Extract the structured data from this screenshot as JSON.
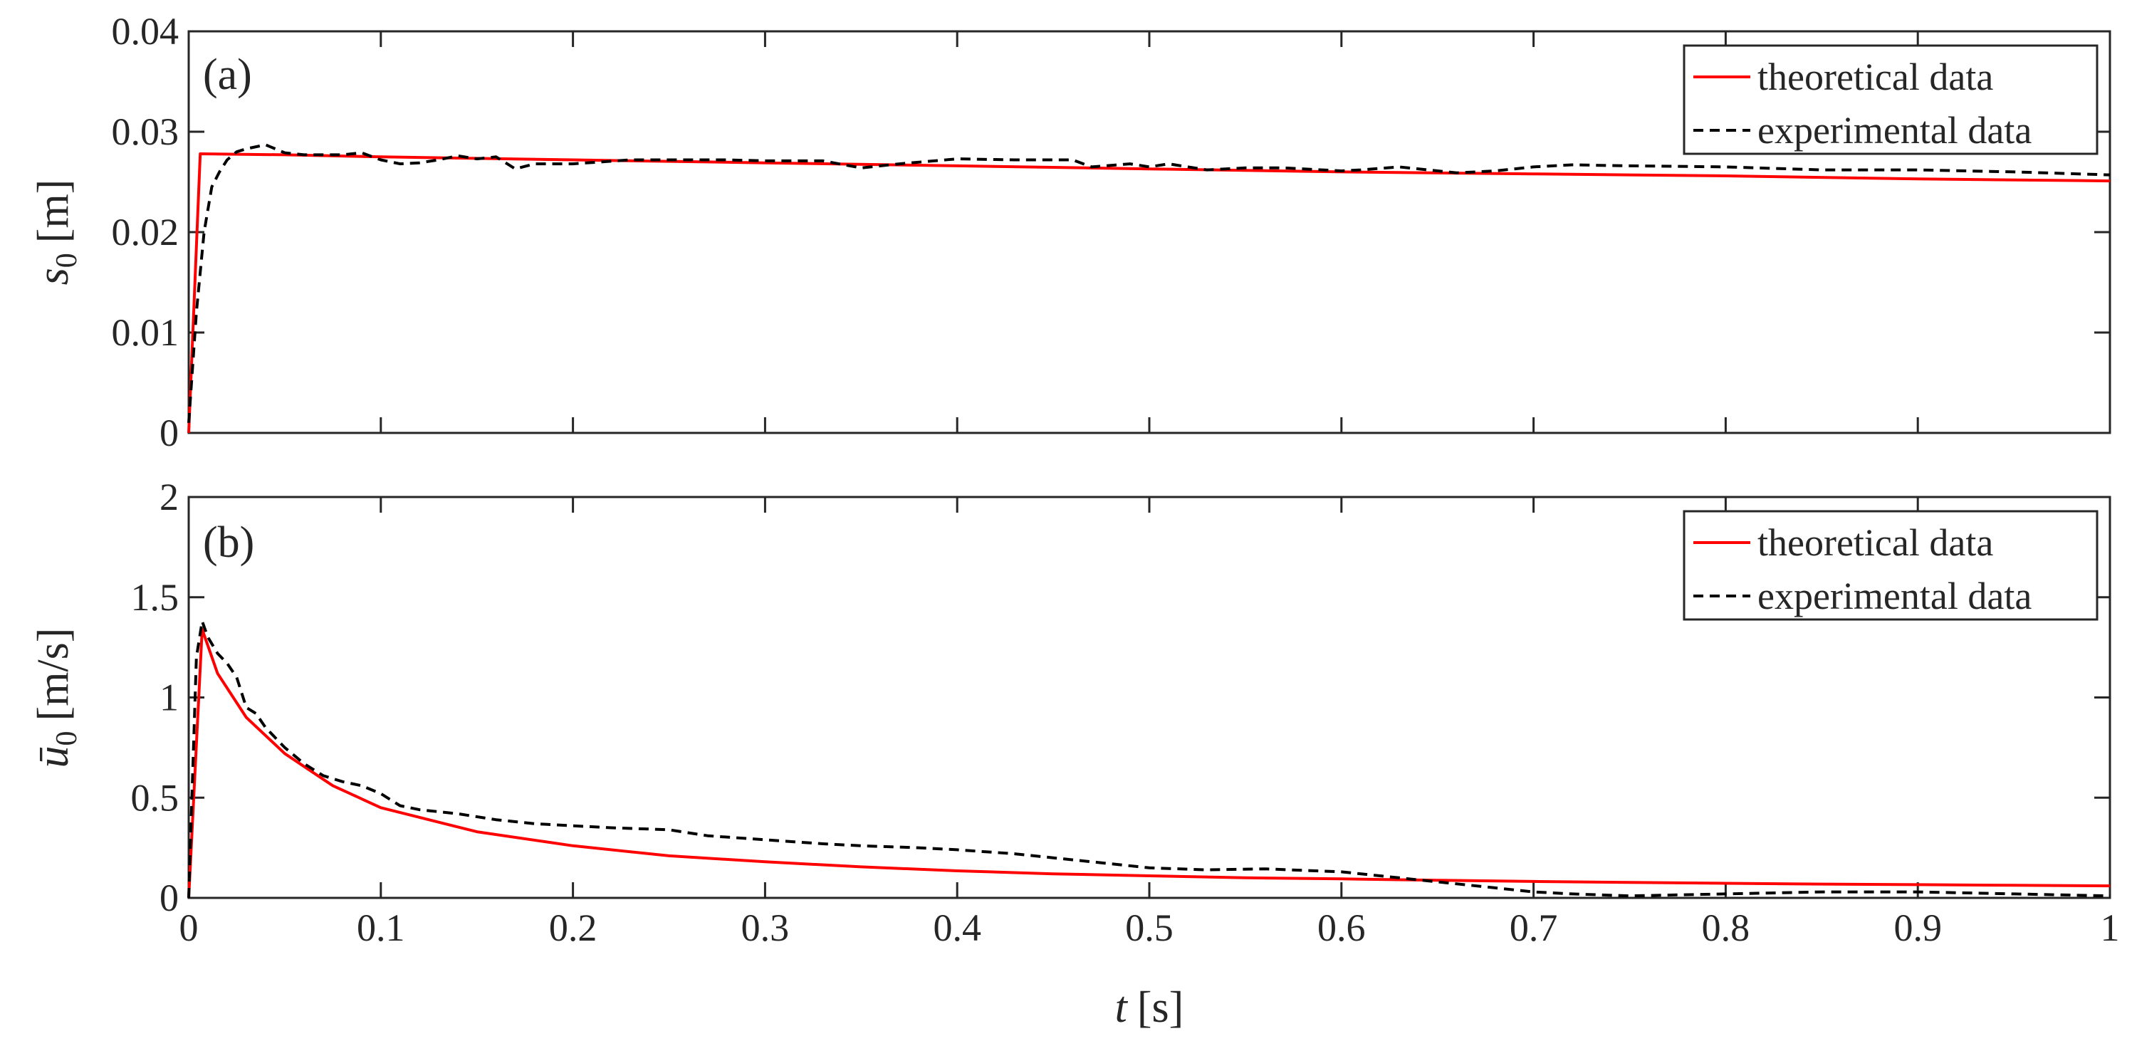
{
  "chart_data": [
    {
      "type": "line",
      "panel_label": "(a)",
      "ylabel_symbol": "s",
      "ylabel_subscript": "0",
      "ylabel_unit": "[m]",
      "xlim": [
        0,
        1
      ],
      "ylim": [
        0,
        0.04
      ],
      "yticks": [
        "0",
        "0.01",
        "0.02",
        "0.03",
        "0.04"
      ],
      "ytick_values": [
        0,
        0.01,
        0.02,
        0.03,
        0.04
      ],
      "xtick_values": [
        0,
        0.1,
        0.2,
        0.3,
        0.4,
        0.5,
        0.6,
        0.7,
        0.8,
        0.9,
        1
      ],
      "grid": false,
      "legend_position": "top-right",
      "series": [
        {
          "name": "theoretical data",
          "color": "#ff0000",
          "style": "solid",
          "x": [
            0,
            0.006,
            0.05,
            0.1,
            0.2,
            0.3,
            0.4,
            0.5,
            0.6,
            0.7,
            0.8,
            0.9,
            1.0
          ],
          "y": [
            0,
            0.0278,
            0.0277,
            0.0275,
            0.0272,
            0.0269,
            0.0266,
            0.0263,
            0.026,
            0.0258,
            0.0256,
            0.0253,
            0.0251
          ]
        },
        {
          "name": "experimental data",
          "color": "#000000",
          "style": "dashed",
          "x": [
            0,
            0.004,
            0.008,
            0.012,
            0.016,
            0.02,
            0.025,
            0.03,
            0.04,
            0.05,
            0.06,
            0.08,
            0.09,
            0.1,
            0.11,
            0.12,
            0.13,
            0.14,
            0.15,
            0.16,
            0.17,
            0.18,
            0.2,
            0.23,
            0.25,
            0.28,
            0.3,
            0.33,
            0.35,
            0.37,
            0.4,
            0.43,
            0.46,
            0.47,
            0.49,
            0.5,
            0.51,
            0.53,
            0.55,
            0.57,
            0.6,
            0.61,
            0.63,
            0.66,
            0.68,
            0.7,
            0.72,
            0.75,
            0.8,
            0.85,
            0.9,
            0.95,
            1.0
          ],
          "y": [
            0.001,
            0.012,
            0.02,
            0.0245,
            0.026,
            0.0272,
            0.028,
            0.0283,
            0.0287,
            0.0279,
            0.0277,
            0.0277,
            0.0279,
            0.0272,
            0.0268,
            0.0269,
            0.0272,
            0.0276,
            0.0273,
            0.0275,
            0.0263,
            0.0268,
            0.0268,
            0.0272,
            0.0272,
            0.0272,
            0.0271,
            0.0271,
            0.0264,
            0.0268,
            0.0273,
            0.0272,
            0.0272,
            0.0265,
            0.0268,
            0.0265,
            0.0268,
            0.0262,
            0.0264,
            0.0264,
            0.0261,
            0.0262,
            0.0265,
            0.0259,
            0.0261,
            0.0265,
            0.0267,
            0.0266,
            0.0265,
            0.0262,
            0.0262,
            0.026,
            0.0257
          ]
        }
      ]
    },
    {
      "type": "line",
      "panel_label": "(b)",
      "ylabel_symbol": "ū",
      "ylabel_subscript": "0",
      "ylabel_unit": "[m/s]",
      "xlabel_symbol": "t",
      "xlabel_unit": "[s]",
      "xlim": [
        0,
        1
      ],
      "ylim": [
        0,
        2
      ],
      "yticks": [
        "0",
        "0.5",
        "1",
        "1.5",
        "2"
      ],
      "ytick_values": [
        0,
        0.5,
        1,
        1.5,
        2
      ],
      "xticks": [
        "0",
        "0.1",
        "0.2",
        "0.3",
        "0.4",
        "0.5",
        "0.6",
        "0.7",
        "0.8",
        "0.9",
        "1"
      ],
      "xtick_values": [
        0,
        0.1,
        0.2,
        0.3,
        0.4,
        0.5,
        0.6,
        0.7,
        0.8,
        0.9,
        1
      ],
      "grid": false,
      "legend_position": "top-right",
      "series": [
        {
          "name": "theoretical data",
          "color": "#ff0000",
          "style": "solid",
          "x": [
            0,
            0.007,
            0.015,
            0.03,
            0.05,
            0.075,
            0.1,
            0.15,
            0.2,
            0.25,
            0.3,
            0.35,
            0.4,
            0.45,
            0.5,
            0.55,
            0.6,
            0.65,
            0.7,
            0.75,
            0.8,
            0.85,
            0.9,
            0.95,
            1.0
          ],
          "y": [
            0,
            1.34,
            1.12,
            0.9,
            0.72,
            0.56,
            0.45,
            0.33,
            0.26,
            0.21,
            0.18,
            0.155,
            0.135,
            0.12,
            0.11,
            0.1,
            0.095,
            0.088,
            0.082,
            0.077,
            0.073,
            0.069,
            0.066,
            0.063,
            0.06
          ]
        },
        {
          "name": "experimental data",
          "color": "#000000",
          "style": "dashed",
          "x": [
            0,
            0.004,
            0.007,
            0.01,
            0.015,
            0.02,
            0.025,
            0.03,
            0.035,
            0.04,
            0.05,
            0.06,
            0.07,
            0.08,
            0.09,
            0.1,
            0.11,
            0.12,
            0.14,
            0.16,
            0.18,
            0.2,
            0.22,
            0.25,
            0.27,
            0.3,
            0.33,
            0.35,
            0.38,
            0.4,
            0.43,
            0.45,
            0.48,
            0.5,
            0.53,
            0.56,
            0.6,
            0.63,
            0.65,
            0.68,
            0.7,
            0.72,
            0.75,
            0.8,
            0.85,
            0.9,
            0.95,
            1.0
          ],
          "y": [
            0,
            1.2,
            1.38,
            1.3,
            1.22,
            1.17,
            1.1,
            0.95,
            0.92,
            0.85,
            0.75,
            0.67,
            0.61,
            0.58,
            0.56,
            0.52,
            0.46,
            0.44,
            0.42,
            0.39,
            0.37,
            0.36,
            0.35,
            0.34,
            0.31,
            0.29,
            0.27,
            0.26,
            0.25,
            0.24,
            0.22,
            0.2,
            0.17,
            0.15,
            0.14,
            0.145,
            0.13,
            0.1,
            0.08,
            0.05,
            0.03,
            0.02,
            0.01,
            0.02,
            0.03,
            0.03,
            0.02,
            0.01
          ]
        }
      ]
    }
  ]
}
